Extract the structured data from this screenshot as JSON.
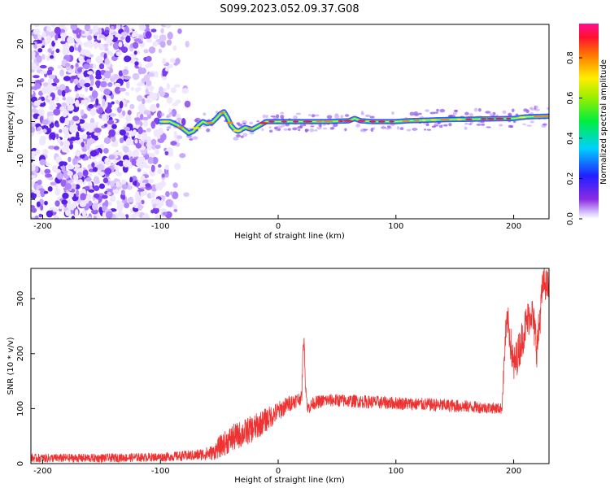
{
  "title": "S099.2023.052.09.37.G08",
  "chart_data": [
    {
      "type": "heatmap",
      "xlabel": "Height of straight line (km)",
      "ylabel": "Frequency (Hz)",
      "xlim": [
        -210,
        230
      ],
      "ylim": [
        -25,
        25
      ],
      "xticks": [
        -200,
        -100,
        0,
        100,
        200
      ],
      "yticks": [
        -20,
        -10,
        0,
        10,
        20
      ],
      "colorbar": {
        "label": "Normalized spectral amplitude",
        "range": [
          0,
          0.97
        ],
        "ticks": [
          "0.0",
          "0.2",
          "0.4",
          "0.6",
          "0.8"
        ],
        "colormap": "rainbow (purple-blue-cyan-green-yellow-red-magenta)"
      },
      "noise_region_x": [
        -210,
        -78
      ],
      "signal_trace": {
        "x": [
          -100,
          -92,
          -85,
          -80,
          -76,
          -72,
          -68,
          -64,
          -60,
          -56,
          -52,
          -49,
          -46,
          -43,
          -40,
          -37,
          -34,
          -31,
          -28,
          -25,
          -22,
          -19,
          -16,
          -13,
          -10,
          -6,
          -2,
          0,
          20,
          40,
          60,
          65,
          70,
          80,
          100,
          110,
          140,
          160,
          180,
          200,
          210,
          220,
          230
        ],
        "y": [
          0,
          0,
          -1,
          -2,
          -3,
          -2.5,
          -1,
          0,
          -0.5,
          -0.2,
          1,
          2,
          2.5,
          1,
          -1,
          -2,
          -2.5,
          -2,
          -1.5,
          -1.8,
          -2,
          -1.5,
          -1,
          -0.5,
          0,
          0,
          0,
          0,
          0,
          0,
          0.2,
          0.8,
          0.2,
          0,
          0,
          0.2,
          0.5,
          0.6,
          0.7,
          0.8,
          1.2,
          1.3,
          1.4
        ]
      }
    },
    {
      "type": "line",
      "xlabel": "Height of straight line (km)",
      "ylabel": "SNR (10 * v/v)",
      "xlim": [
        -210,
        230
      ],
      "ylim": [
        0,
        355
      ],
      "xticks": [
        -200,
        -100,
        0,
        100,
        200
      ],
      "yticks": [
        0,
        100,
        200,
        300
      ],
      "series": [
        {
          "color": "#ee3333",
          "x": [
            -210,
            -150,
            -100,
            -70,
            -55,
            -50,
            -40,
            -30,
            -20,
            -10,
            0,
            10,
            20,
            21,
            22,
            23,
            25,
            30,
            40,
            50,
            100,
            150,
            190,
            193,
            195,
            200,
            205,
            210,
            215,
            220,
            225,
            230
          ],
          "y": [
            10,
            10,
            12,
            15,
            20,
            30,
            45,
            55,
            65,
            80,
            95,
            110,
            120,
            200,
            230,
            150,
            100,
            110,
            115,
            115,
            110,
            105,
            100,
            230,
            260,
            175,
            210,
            250,
            280,
            210,
            330,
            320
          ],
          "noise_amplitude": [
            8,
            8,
            8,
            10,
            14,
            20,
            25,
            25,
            25,
            22,
            18,
            15,
            12,
            10,
            10,
            10,
            12,
            12,
            12,
            12,
            12,
            12,
            10,
            30,
            30,
            35,
            35,
            35,
            35,
            40,
            30,
            30
          ]
        }
      ]
    }
  ]
}
